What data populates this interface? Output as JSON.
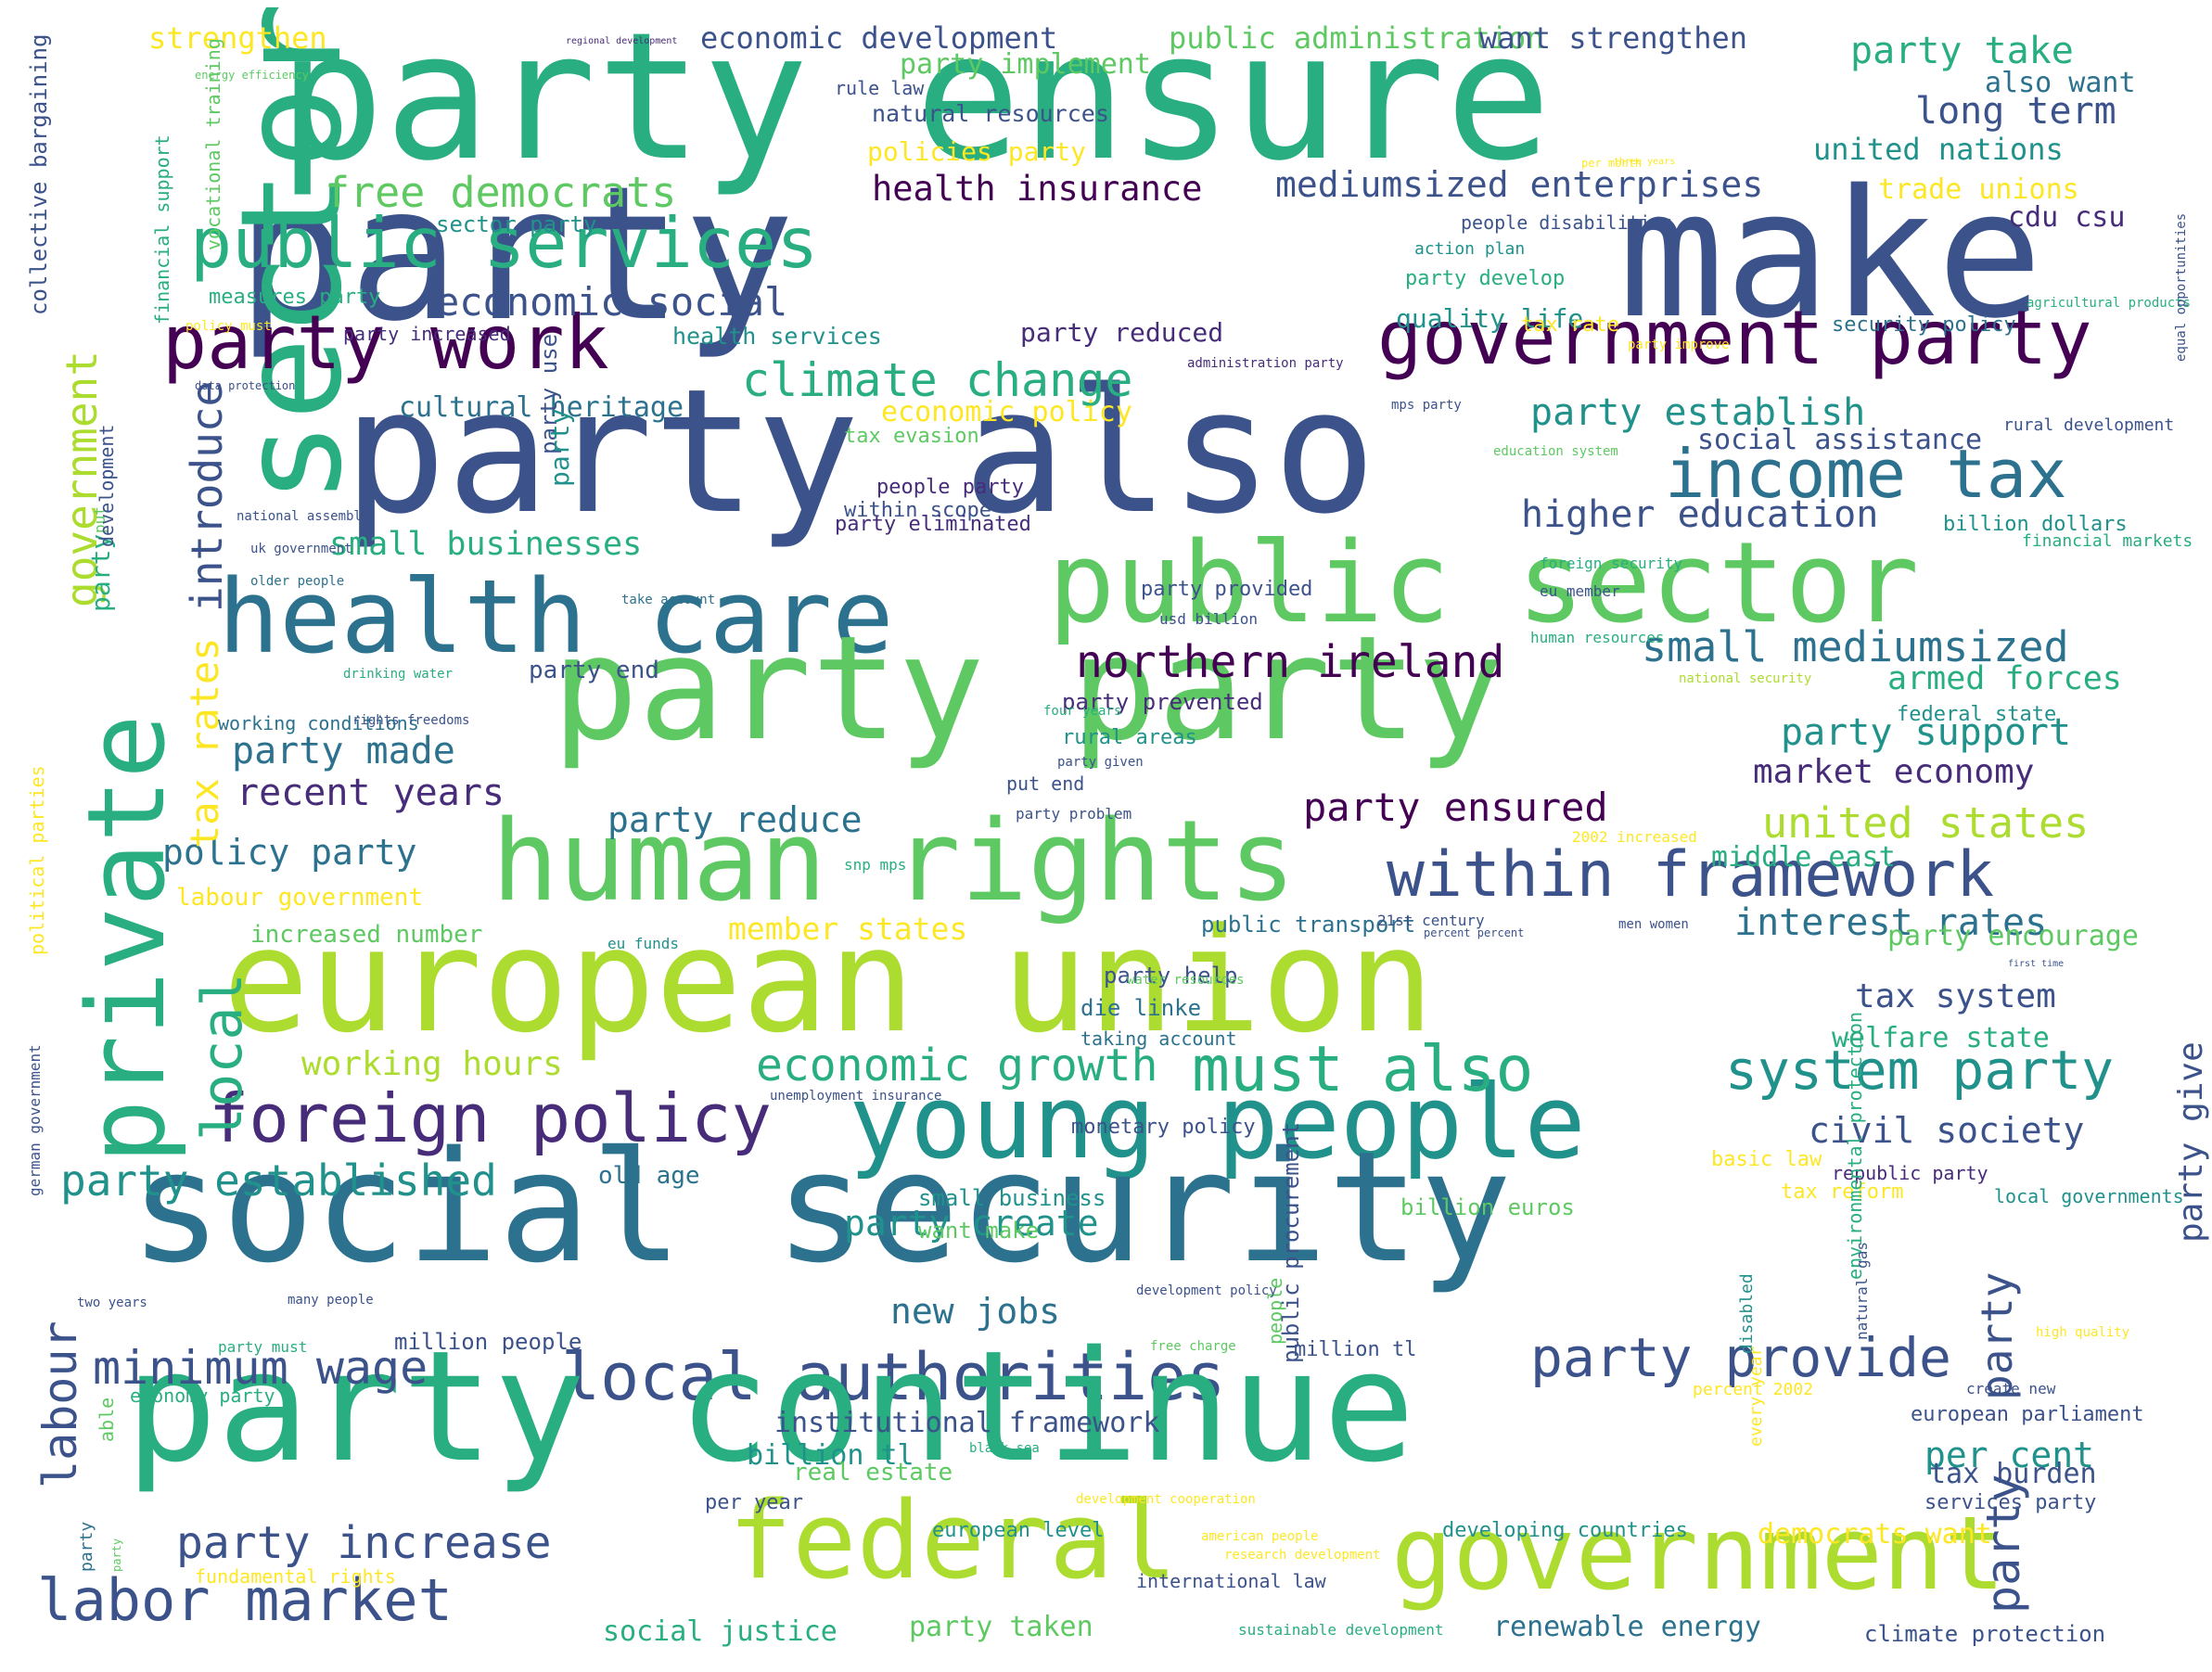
{
  "palette": {
    "c1": "#440154",
    "c2": "#472c7a",
    "c3": "#3b528b",
    "c4": "#2c728e",
    "c5": "#21918c",
    "c6": "#28ae80",
    "c7": "#5ec962",
    "c8": "#addc30",
    "c9": "#fde725"
  },
  "words": [
    {
      "text": "party ensure",
      "c": "c6"
    },
    {
      "text": "party",
      "c": "c3"
    },
    {
      "text": "make",
      "c": "c3"
    },
    {
      "text": "sector",
      "c": "c6"
    },
    {
      "text": "public services",
      "c": "c6"
    },
    {
      "text": "party work",
      "c": "c1"
    },
    {
      "text": "government party",
      "c": "c1"
    },
    {
      "text": "party also",
      "c": "c3"
    },
    {
      "text": "income tax",
      "c": "c4"
    },
    {
      "text": "public sector",
      "c": "c7"
    },
    {
      "text": "health care",
      "c": "c4"
    },
    {
      "text": "private",
      "c": "c6"
    },
    {
      "text": "party party",
      "c": "c7"
    },
    {
      "text": "human rights",
      "c": "c7"
    },
    {
      "text": "within framework",
      "c": "c3"
    },
    {
      "text": "european union",
      "c": "c8"
    },
    {
      "text": "young people",
      "c": "c5"
    },
    {
      "text": "foreign policy",
      "c": "c2"
    },
    {
      "text": "must also",
      "c": "c6"
    },
    {
      "text": "system party",
      "c": "c5"
    },
    {
      "text": "social security",
      "c": "c4"
    },
    {
      "text": "local authorities",
      "c": "c3"
    },
    {
      "text": "party continue",
      "c": "c6"
    },
    {
      "text": "federal",
      "c": "c8"
    },
    {
      "text": "government",
      "c": "c8"
    },
    {
      "text": "labor market",
      "c": "c3"
    },
    {
      "text": "party increase",
      "c": "c3"
    },
    {
      "text": "minimum wage",
      "c": "c3"
    },
    {
      "text": "party provide",
      "c": "c3"
    },
    {
      "text": "party established",
      "c": "c5"
    },
    {
      "text": "economic growth",
      "c": "c6"
    },
    {
      "text": "climate change",
      "c": "c6"
    },
    {
      "text": "economic social",
      "c": "c3"
    },
    {
      "text": "free democrats",
      "c": "c7"
    },
    {
      "text": "health insurance",
      "c": "c1"
    },
    {
      "text": "mediumsized enterprises",
      "c": "c3"
    },
    {
      "text": "party take",
      "c": "c6"
    },
    {
      "text": "long term",
      "c": "c3"
    },
    {
      "text": "united nations",
      "c": "c5"
    },
    {
      "text": "trade unions",
      "c": "c9"
    },
    {
      "text": "cdu csu",
      "c": "c2"
    },
    {
      "text": "party establish",
      "c": "c5"
    },
    {
      "text": "social assistance",
      "c": "c3"
    },
    {
      "text": "higher education",
      "c": "c3"
    },
    {
      "text": "northern ireland",
      "c": "c1"
    },
    {
      "text": "small mediumsized",
      "c": "c4"
    },
    {
      "text": "armed forces",
      "c": "c6"
    },
    {
      "text": "party support",
      "c": "c5"
    },
    {
      "text": "market economy",
      "c": "c2"
    },
    {
      "text": "party ensured",
      "c": "c1"
    },
    {
      "text": "united states",
      "c": "c8"
    },
    {
      "text": "party made",
      "c": "c4"
    },
    {
      "text": "recent years",
      "c": "c2"
    },
    {
      "text": "party reduce",
      "c": "c4"
    },
    {
      "text": "policy party",
      "c": "c4"
    },
    {
      "text": "interest rates",
      "c": "c4"
    },
    {
      "text": "member states",
      "c": "c9"
    },
    {
      "text": "tax system",
      "c": "c3"
    },
    {
      "text": "welfare state",
      "c": "c6"
    },
    {
      "text": "working hours",
      "c": "c8"
    },
    {
      "text": "civil society",
      "c": "c3"
    },
    {
      "text": "party create",
      "c": "c5"
    },
    {
      "text": "new jobs",
      "c": "c4"
    },
    {
      "text": "per cent",
      "c": "c5"
    },
    {
      "text": "tax burden",
      "c": "c3"
    },
    {
      "text": "democrats want",
      "c": "c9"
    },
    {
      "text": "small businesses",
      "c": "c6"
    },
    {
      "text": "tax rates",
      "c": "c9"
    },
    {
      "text": "introduce",
      "c": "c3"
    },
    {
      "text": "local",
      "c": "c6"
    },
    {
      "text": "government",
      "c": "c8"
    },
    {
      "text": "labour",
      "c": "c3"
    },
    {
      "text": "party",
      "c": "c3"
    },
    {
      "text": "party",
      "c": "c3"
    },
    {
      "text": "party give",
      "c": "c3"
    },
    {
      "text": "strengthen",
      "c": "c9"
    },
    {
      "text": "economic development",
      "c": "c3"
    },
    {
      "text": "public administration",
      "c": "c7"
    },
    {
      "text": "want strengthen",
      "c": "c3"
    },
    {
      "text": "party implement",
      "c": "c7"
    },
    {
      "text": "also want",
      "c": "c4"
    },
    {
      "text": "rule law",
      "c": "c3"
    },
    {
      "text": "natural resources",
      "c": "c3"
    },
    {
      "text": "policies party",
      "c": "c9"
    },
    {
      "text": "sector party",
      "c": "c5"
    },
    {
      "text": "people disabilities",
      "c": "c3"
    },
    {
      "text": "action plan",
      "c": "c5"
    },
    {
      "text": "party develop",
      "c": "c6"
    },
    {
      "text": "measures party",
      "c": "c6"
    },
    {
      "text": "party increased",
      "c": "c2"
    },
    {
      "text": "health services",
      "c": "c5"
    },
    {
      "text": "party reduced",
      "c": "c2"
    },
    {
      "text": "quality life",
      "c": "c5"
    },
    {
      "text": "tax rate",
      "c": "c9"
    },
    {
      "text": "security policy",
      "c": "c4"
    },
    {
      "text": "cultural heritage",
      "c": "c4"
    },
    {
      "text": "economic policy",
      "c": "c9"
    },
    {
      "text": "tax evasion",
      "c": "c7"
    },
    {
      "text": "people party",
      "c": "c2"
    },
    {
      "text": "within scope",
      "c": "c3"
    },
    {
      "text": "party eliminated",
      "c": "c2"
    },
    {
      "text": "party provided",
      "c": "c3"
    },
    {
      "text": "billion dollars",
      "c": "c5"
    },
    {
      "text": "party end",
      "c": "c3"
    },
    {
      "text": "party prevented",
      "c": "c2"
    },
    {
      "text": "working conditions",
      "c": "c4"
    },
    {
      "text": "rural areas",
      "c": "c5"
    },
    {
      "text": "federal state",
      "c": "c5"
    },
    {
      "text": "put end",
      "c": "c3"
    },
    {
      "text": "increased number",
      "c": "c7"
    },
    {
      "text": "labour government",
      "c": "c9"
    },
    {
      "text": "public transport",
      "c": "c4"
    },
    {
      "text": "party encourage",
      "c": "c7"
    },
    {
      "text": "party help",
      "c": "c3"
    },
    {
      "text": "die linke",
      "c": "c4"
    },
    {
      "text": "taking account",
      "c": "c4"
    },
    {
      "text": "monetary policy",
      "c": "c3"
    },
    {
      "text": "basic law",
      "c": "c9"
    },
    {
      "text": "old age",
      "c": "c4"
    },
    {
      "text": "small business",
      "c": "c5"
    },
    {
      "text": "want make",
      "c": "c7"
    },
    {
      "text": "billion euros",
      "c": "c7"
    },
    {
      "text": "tax reform",
      "c": "c9"
    },
    {
      "text": "republic party",
      "c": "c2"
    },
    {
      "text": "local governments",
      "c": "c5"
    },
    {
      "text": "million people",
      "c": "c3"
    },
    {
      "text": "million tl",
      "c": "c3"
    },
    {
      "text": "economy party",
      "c": "c6"
    },
    {
      "text": "institutional framework",
      "c": "c3"
    },
    {
      "text": "billion tl",
      "c": "c5"
    },
    {
      "text": "real estate",
      "c": "c7"
    },
    {
      "text": "per year",
      "c": "c3"
    },
    {
      "text": "european parliament",
      "c": "c3"
    },
    {
      "text": "services party",
      "c": "c3"
    },
    {
      "text": "european level",
      "c": "c5"
    },
    {
      "text": "developing countries",
      "c": "c5"
    },
    {
      "text": "fundamental rights",
      "c": "c9"
    },
    {
      "text": "international law",
      "c": "c3"
    },
    {
      "text": "social justice",
      "c": "c6"
    },
    {
      "text": "party taken",
      "c": "c7"
    },
    {
      "text": "renewable energy",
      "c": "c4"
    },
    {
      "text": "climate protection",
      "c": "c3"
    },
    {
      "text": "sustainable development",
      "c": "c6"
    },
    {
      "text": "percent 2002",
      "c": "c9"
    },
    {
      "text": "create new",
      "c": "c3"
    },
    {
      "text": "every year",
      "c": "c9"
    },
    {
      "text": "disabled",
      "c": "c5"
    },
    {
      "text": "people",
      "c": "c7"
    },
    {
      "text": "rural development",
      "c": "c3"
    },
    {
      "text": "financial markets",
      "c": "c6"
    },
    {
      "text": "education system",
      "c": "c7"
    },
    {
      "text": "foreign security",
      "c": "c6"
    },
    {
      "text": "eu member",
      "c": "c3"
    },
    {
      "text": "usd billion",
      "c": "c3"
    },
    {
      "text": "human resources",
      "c": "c6"
    },
    {
      "text": "national security",
      "c": "c8"
    },
    {
      "text": "2002 increased",
      "c": "c9"
    },
    {
      "text": "middle east",
      "c": "c6"
    },
    {
      "text": "21st century",
      "c": "c3"
    },
    {
      "text": "percent percent",
      "c": "c3"
    },
    {
      "text": "men women",
      "c": "c3"
    },
    {
      "text": "water resources",
      "c": "c7"
    },
    {
      "text": "unemployment insurance",
      "c": "c3"
    },
    {
      "text": "development policy",
      "c": "c3"
    },
    {
      "text": "free charge",
      "c": "c7"
    },
    {
      "text": "party must",
      "c": "c6"
    },
    {
      "text": "american people",
      "c": "c9"
    },
    {
      "text": "research development",
      "c": "c9"
    },
    {
      "text": "black sea",
      "c": "c6"
    },
    {
      "text": "development cooperation",
      "c": "c9"
    },
    {
      "text": "party problem",
      "c": "c3"
    },
    {
      "text": "party given",
      "c": "c3"
    },
    {
      "text": "four years",
      "c": "c6"
    },
    {
      "text": "rights freedoms",
      "c": "c3"
    },
    {
      "text": "drinking water",
      "c": "c6"
    },
    {
      "text": "older people",
      "c": "c4"
    },
    {
      "text": "take account",
      "c": "c4"
    },
    {
      "text": "national assembly",
      "c": "c3"
    },
    {
      "text": "uk government",
      "c": "c3"
    },
    {
      "text": "data protection",
      "c": "c3"
    },
    {
      "text": "policy must",
      "c": "c9"
    },
    {
      "text": "administration party",
      "c": "c2"
    },
    {
      "text": "mps party",
      "c": "c3"
    },
    {
      "text": "three years",
      "c": "c9"
    },
    {
      "text": "agricultural products",
      "c": "c6"
    },
    {
      "text": "per month",
      "c": "c9"
    },
    {
      "text": "party improve",
      "c": "c9"
    },
    {
      "text": "snp mps",
      "c": "c6"
    },
    {
      "text": "high quality",
      "c": "c9"
    },
    {
      "text": "many people",
      "c": "c3"
    },
    {
      "text": "two years",
      "c": "c3"
    },
    {
      "text": "eu funds",
      "c": "c5"
    },
    {
      "text": "regional development",
      "c": "c2"
    },
    {
      "text": "energy efficiency",
      "c": "c7"
    },
    {
      "text": "first time",
      "c": "c3"
    },
    {
      "text": "collective bargaining",
      "c": "c3"
    },
    {
      "text": "financial support",
      "c": "c6"
    },
    {
      "text": "vocational training",
      "c": "c7"
    },
    {
      "text": "political parties",
      "c": "c9"
    },
    {
      "text": "german government",
      "c": "c3"
    },
    {
      "text": "able",
      "c": "c7"
    },
    {
      "text": "party",
      "c": "c4"
    },
    {
      "text": "party",
      "c": "c7"
    },
    {
      "text": "put",
      "c": "c7"
    },
    {
      "text": "party",
      "c": "c6"
    },
    {
      "text": "development",
      "c": "c3"
    },
    {
      "text": "party use",
      "c": "c3"
    },
    {
      "text": "party",
      "c": "c5"
    },
    {
      "text": "public procurement",
      "c": "c3"
    },
    {
      "text": "environmental protection",
      "c": "c6"
    },
    {
      "text": "natural gas",
      "c": "c3"
    },
    {
      "text": "equal opportunities",
      "c": "c3"
    }
  ]
}
